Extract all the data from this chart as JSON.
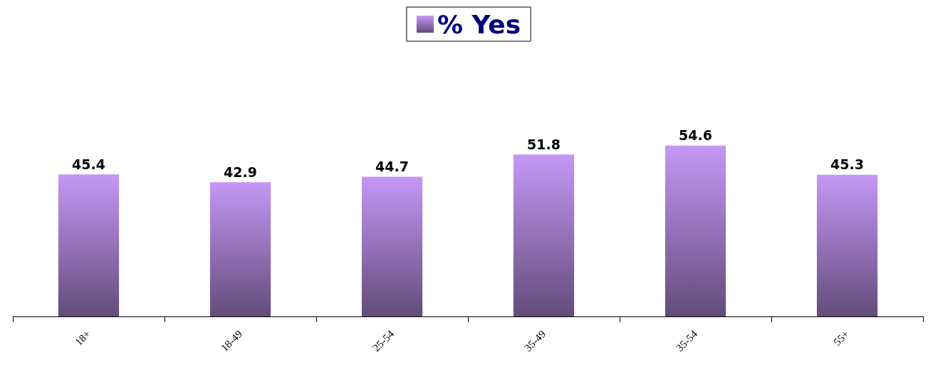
{
  "chart_data": {
    "type": "bar",
    "categories": [
      "18+",
      "18-49",
      "25-54",
      "35-49",
      "35-54",
      "55+"
    ],
    "series": [
      {
        "name": "% Yes",
        "color": "#c597f5",
        "values": [
          45.4,
          42.9,
          44.7,
          51.8,
          54.6,
          45.3
        ]
      }
    ],
    "data_labels": true,
    "legend": "top"
  }
}
